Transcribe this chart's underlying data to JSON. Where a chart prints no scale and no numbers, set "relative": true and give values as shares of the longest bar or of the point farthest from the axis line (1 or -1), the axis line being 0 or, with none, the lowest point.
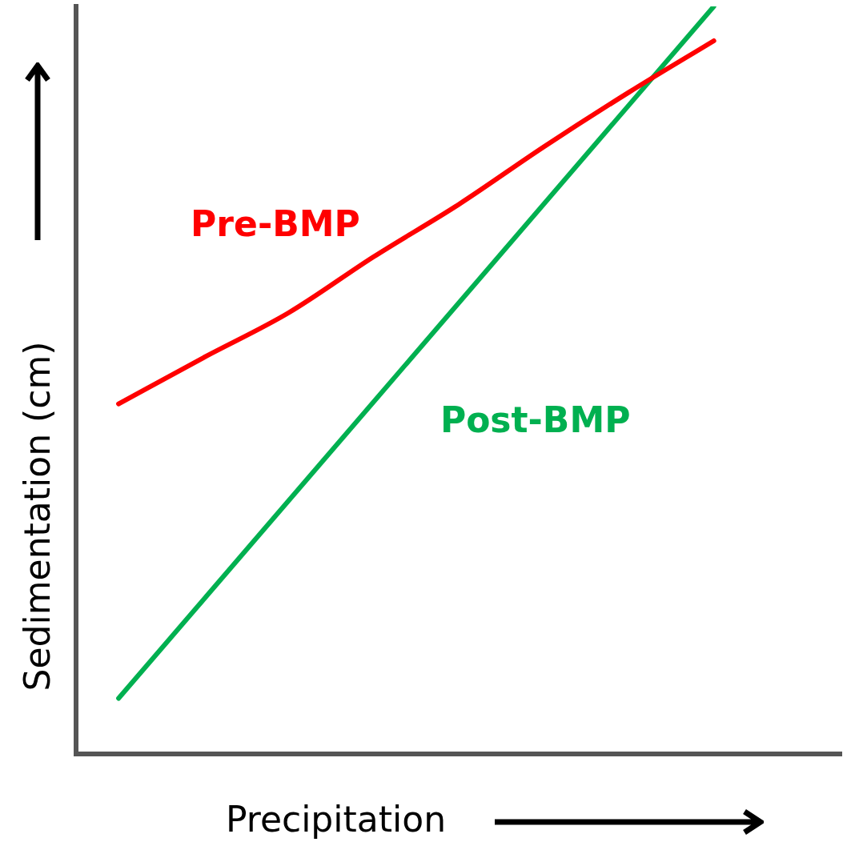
{
  "chart_data": {
    "type": "line",
    "relative": true,
    "xlabel": "Precipitation",
    "ylabel": "Sedimentation  (cm)",
    "categories": [
      null,
      null,
      null,
      null,
      null,
      null,
      null,
      null,
      null
    ],
    "grid": false,
    "legend": false,
    "marker": "none",
    "line_style": "solid",
    "series": [
      {
        "name": "Pre-BMP",
        "color": "#ff0000",
        "values": [
          0.468,
          0.53,
          0.59,
          0.665,
          0.735,
          0.812,
          0.885,
          0.954,
          null
        ]
      },
      {
        "name": "Post-BMP",
        "color": "#00b050",
        "values": [
          0.074,
          null,
          null,
          null,
          null,
          null,
          null,
          1.0,
          null
        ]
      }
    ]
  }
}
